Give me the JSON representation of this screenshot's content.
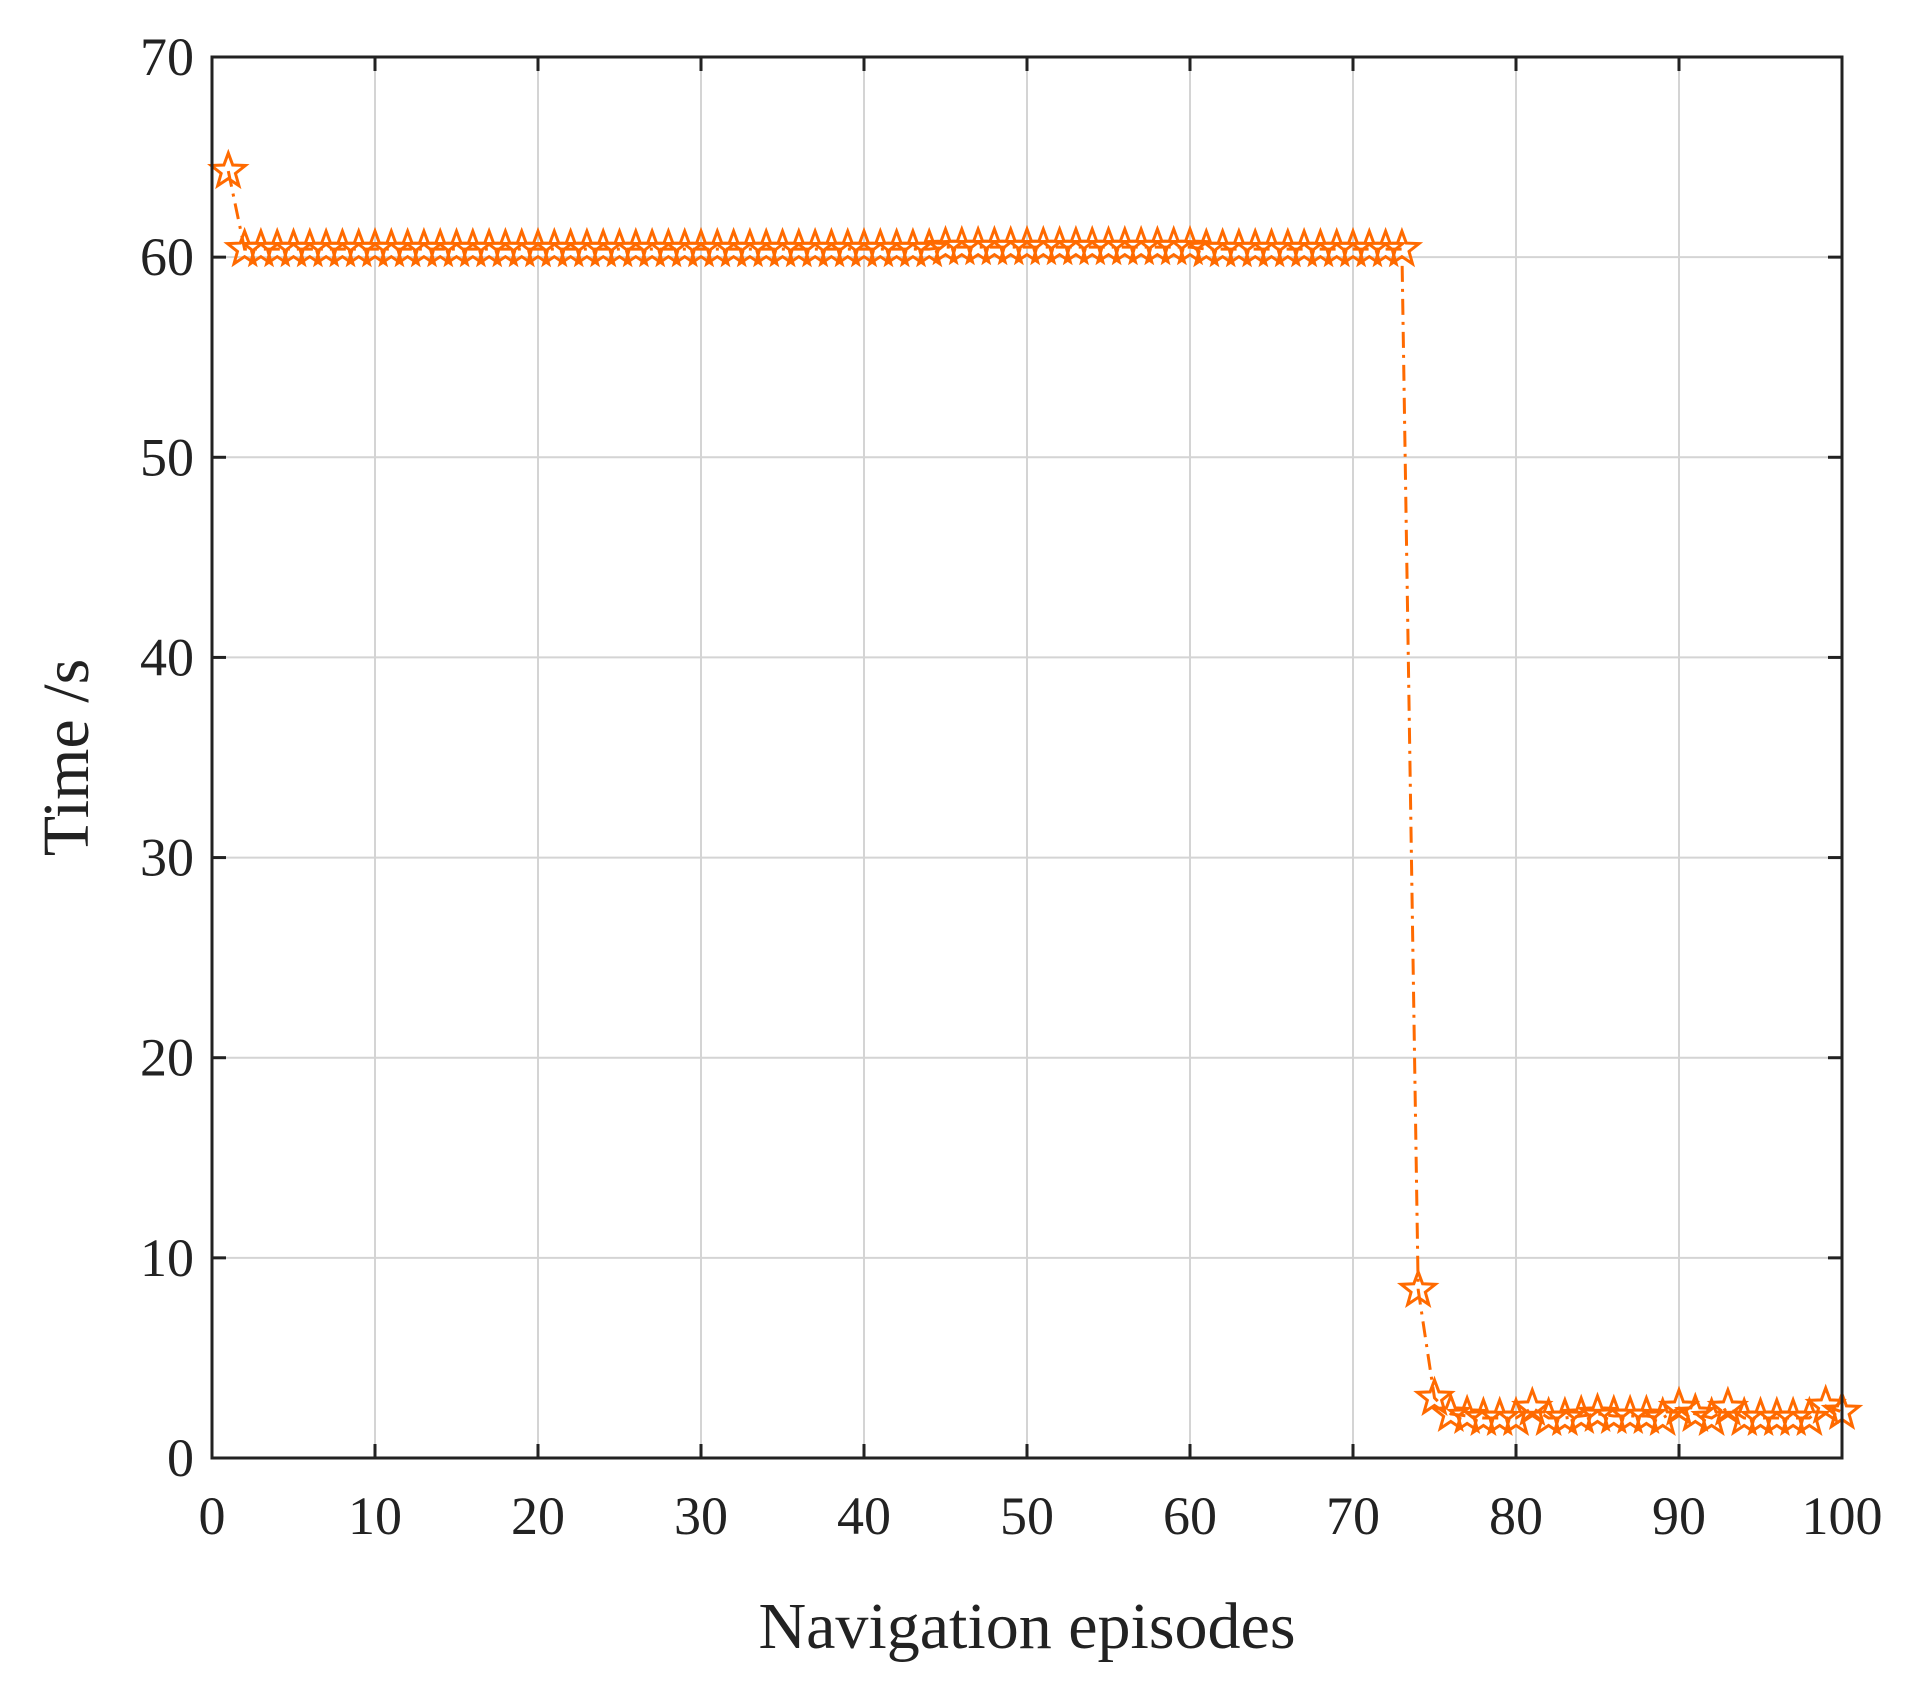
{
  "chart_data": {
    "type": "line",
    "title": "",
    "xlabel": "Navigation episodes",
    "ylabel": "Time /s",
    "xlim": [
      0,
      100
    ],
    "ylim": [
      0,
      70
    ],
    "xticks": [
      0,
      10,
      20,
      30,
      40,
      50,
      60,
      70,
      80,
      90,
      100
    ],
    "yticks": [
      0,
      10,
      20,
      30,
      40,
      50,
      60,
      70
    ],
    "grid": true,
    "legend": "none",
    "series": [
      {
        "color": "#FF6A00",
        "marker": "star",
        "line_style": "dash-dot",
        "x": [
          1,
          2,
          3,
          4,
          5,
          6,
          7,
          8,
          9,
          10,
          11,
          12,
          13,
          14,
          15,
          16,
          17,
          18,
          19,
          20,
          21,
          22,
          23,
          24,
          25,
          26,
          27,
          28,
          29,
          30,
          31,
          32,
          33,
          34,
          35,
          36,
          37,
          38,
          39,
          40,
          41,
          42,
          43,
          44,
          45,
          46,
          47,
          48,
          49,
          50,
          51,
          52,
          53,
          54,
          55,
          56,
          57,
          58,
          59,
          60,
          61,
          62,
          63,
          64,
          65,
          66,
          67,
          68,
          69,
          70,
          71,
          72,
          73,
          74,
          75,
          76,
          77,
          78,
          79,
          80,
          81,
          82,
          83,
          84,
          85,
          86,
          87,
          88,
          89,
          90,
          91,
          92,
          93,
          94,
          95,
          96,
          97,
          98,
          99,
          100
        ],
        "values": [
          64.3,
          60.4,
          60.4,
          60.4,
          60.4,
          60.4,
          60.4,
          60.4,
          60.4,
          60.4,
          60.4,
          60.4,
          60.4,
          60.4,
          60.4,
          60.4,
          60.4,
          60.4,
          60.4,
          60.4,
          60.4,
          60.4,
          60.4,
          60.4,
          60.4,
          60.4,
          60.4,
          60.4,
          60.4,
          60.4,
          60.4,
          60.4,
          60.4,
          60.4,
          60.4,
          60.4,
          60.4,
          60.4,
          60.4,
          60.4,
          60.4,
          60.4,
          60.4,
          60.4,
          60.5,
          60.5,
          60.5,
          60.5,
          60.5,
          60.5,
          60.5,
          60.5,
          60.5,
          60.5,
          60.5,
          60.5,
          60.5,
          60.5,
          60.5,
          60.5,
          60.4,
          60.4,
          60.4,
          60.4,
          60.4,
          60.4,
          60.4,
          60.4,
          60.4,
          60.4,
          60.4,
          60.4,
          60.4,
          8.4,
          3.0,
          2.2,
          2.1,
          2.0,
          2.0,
          2.0,
          2.5,
          2.0,
          2.0,
          2.1,
          2.2,
          2.1,
          2.1,
          2.1,
          2.0,
          2.5,
          2.2,
          2.0,
          2.5,
          2.0,
          2.0,
          2.0,
          2.0,
          2.0,
          2.6,
          2.3
        ]
      }
    ]
  }
}
